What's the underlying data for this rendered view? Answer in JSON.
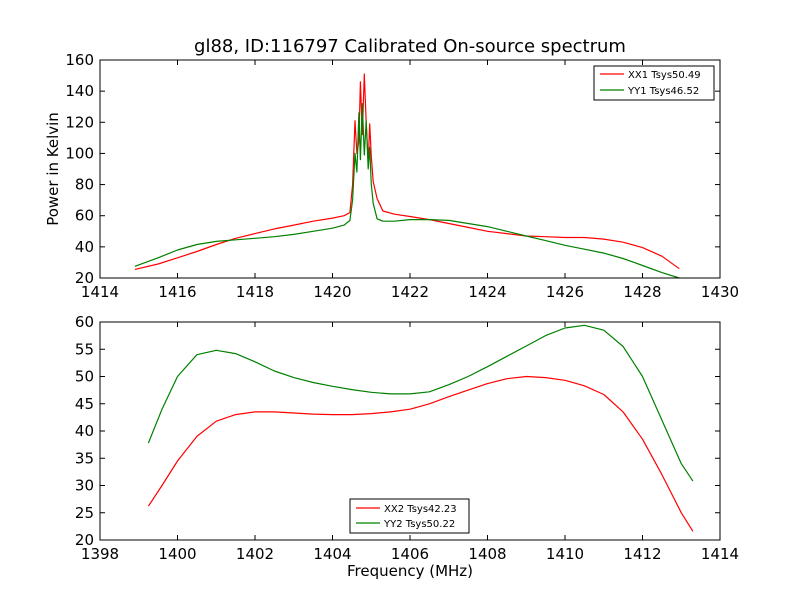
{
  "chart_data": [
    {
      "type": "line",
      "title": "gl88, ID:116797 Calibrated On-source spectrum",
      "xlabel": "",
      "ylabel": "Power in Kelvin",
      "xlim": [
        1414,
        1430
      ],
      "ylim": [
        20,
        160
      ],
      "xticks": [
        1414,
        1416,
        1418,
        1420,
        1422,
        1424,
        1426,
        1428,
        1430
      ],
      "yticks": [
        20,
        40,
        60,
        80,
        100,
        120,
        140,
        160
      ],
      "grid": false,
      "legend_position": "top-right",
      "series": [
        {
          "name": "XX1 Tsys50.49",
          "color": "#ff0000",
          "points": [
            [
              1414.9,
              25.5
            ],
            [
              1415.5,
              29
            ],
            [
              1416,
              33
            ],
            [
              1416.5,
              37
            ],
            [
              1417,
              41.5
            ],
            [
              1417.5,
              45.5
            ],
            [
              1418,
              48.5
            ],
            [
              1418.5,
              51.5
            ],
            [
              1419,
              54
            ],
            [
              1419.5,
              56.5
            ],
            [
              1420,
              58.5
            ],
            [
              1420.3,
              60
            ],
            [
              1420.45,
              62
            ],
            [
              1420.52,
              80
            ],
            [
              1420.58,
              121
            ],
            [
              1420.63,
              100
            ],
            [
              1420.68,
              108
            ],
            [
              1420.72,
              146
            ],
            [
              1420.77,
              112
            ],
            [
              1420.82,
              151
            ],
            [
              1420.87,
              120
            ],
            [
              1420.92,
              94
            ],
            [
              1420.96,
              119
            ],
            [
              1421,
              98
            ],
            [
              1421.05,
              82
            ],
            [
              1421.15,
              71
            ],
            [
              1421.3,
              63
            ],
            [
              1421.6,
              61
            ],
            [
              1422,
              59.5
            ],
            [
              1422.5,
              57.5
            ],
            [
              1423,
              55
            ],
            [
              1423.5,
              52.5
            ],
            [
              1424,
              50
            ],
            [
              1424.5,
              48.5
            ],
            [
              1425,
              47
            ],
            [
              1425.5,
              46.5
            ],
            [
              1426,
              46
            ],
            [
              1426.5,
              46
            ],
            [
              1427,
              45
            ],
            [
              1427.5,
              43
            ],
            [
              1428,
              39.5
            ],
            [
              1428.5,
              34
            ],
            [
              1428.95,
              26
            ]
          ]
        },
        {
          "name": "YY1 Tsys46.52",
          "color": "#008000",
          "points": [
            [
              1414.9,
              27.5
            ],
            [
              1415.5,
              33
            ],
            [
              1416,
              38
            ],
            [
              1416.5,
              41.5
            ],
            [
              1417,
              43.5
            ],
            [
              1417.5,
              44.5
            ],
            [
              1418,
              45.5
            ],
            [
              1418.5,
              46.5
            ],
            [
              1419,
              48
            ],
            [
              1419.5,
              50
            ],
            [
              1420,
              52
            ],
            [
              1420.3,
              54
            ],
            [
              1420.45,
              57
            ],
            [
              1420.52,
              70
            ],
            [
              1420.58,
              100
            ],
            [
              1420.63,
              88
            ],
            [
              1420.68,
              126
            ],
            [
              1420.72,
              96
            ],
            [
              1420.77,
              132
            ],
            [
              1420.82,
              99
            ],
            [
              1420.87,
              121
            ],
            [
              1420.92,
              90
            ],
            [
              1420.96,
              104
            ],
            [
              1421,
              80
            ],
            [
              1421.05,
              68
            ],
            [
              1421.15,
              58
            ],
            [
              1421.3,
              56.5
            ],
            [
              1421.6,
              56.5
            ],
            [
              1422,
              57.5
            ],
            [
              1422.5,
              57.5
            ],
            [
              1423,
              57
            ],
            [
              1423.5,
              55
            ],
            [
              1424,
              53
            ],
            [
              1424.5,
              50
            ],
            [
              1425,
              47
            ],
            [
              1425.5,
              44
            ],
            [
              1426,
              41
            ],
            [
              1426.5,
              38.5
            ],
            [
              1427,
              36
            ],
            [
              1427.5,
              32.5
            ],
            [
              1428,
              28
            ],
            [
              1428.5,
              23.5
            ],
            [
              1428.95,
              20
            ]
          ]
        }
      ]
    },
    {
      "type": "line",
      "title": "",
      "xlabel": "Frequency (MHz)",
      "ylabel": "",
      "xlim": [
        1398,
        1414
      ],
      "ylim": [
        20,
        60
      ],
      "xticks": [
        1398,
        1400,
        1402,
        1404,
        1406,
        1408,
        1410,
        1412,
        1414
      ],
      "yticks": [
        20,
        25,
        30,
        35,
        40,
        45,
        50,
        55,
        60
      ],
      "grid": false,
      "legend_position": "bottom-center",
      "series": [
        {
          "name": "XX2 Tsys42.23",
          "color": "#ff0000",
          "points": [
            [
              1399.25,
              26.2
            ],
            [
              1399.6,
              30
            ],
            [
              1400,
              34.5
            ],
            [
              1400.5,
              39
            ],
            [
              1401,
              41.8
            ],
            [
              1401.5,
              43
            ],
            [
              1402,
              43.5
            ],
            [
              1402.5,
              43.5
            ],
            [
              1403,
              43.3
            ],
            [
              1403.5,
              43.1
            ],
            [
              1404,
              43
            ],
            [
              1404.5,
              43
            ],
            [
              1405,
              43.2
            ],
            [
              1405.5,
              43.5
            ],
            [
              1406,
              44
            ],
            [
              1406.5,
              45
            ],
            [
              1407,
              46.3
            ],
            [
              1407.5,
              47.5
            ],
            [
              1408,
              48.7
            ],
            [
              1408.5,
              49.6
            ],
            [
              1409,
              50
            ],
            [
              1409.5,
              49.8
            ],
            [
              1410,
              49.3
            ],
            [
              1410.5,
              48.3
            ],
            [
              1411,
              46.7
            ],
            [
              1411.5,
              43.5
            ],
            [
              1412,
              38.5
            ],
            [
              1412.5,
              32
            ],
            [
              1413,
              25
            ],
            [
              1413.3,
              21.6
            ]
          ]
        },
        {
          "name": "YY2 Tsys50.22",
          "color": "#008000",
          "points": [
            [
              1399.25,
              37.8
            ],
            [
              1399.6,
              44
            ],
            [
              1400,
              50
            ],
            [
              1400.5,
              54
            ],
            [
              1401,
              54.8
            ],
            [
              1401.5,
              54.2
            ],
            [
              1402,
              52.7
            ],
            [
              1402.5,
              51
            ],
            [
              1403,
              49.8
            ],
            [
              1403.5,
              48.9
            ],
            [
              1404,
              48.2
            ],
            [
              1404.5,
              47.6
            ],
            [
              1405,
              47.1
            ],
            [
              1405.5,
              46.8
            ],
            [
              1406,
              46.8
            ],
            [
              1406.5,
              47.2
            ],
            [
              1407,
              48.5
            ],
            [
              1407.5,
              50
            ],
            [
              1408,
              51.8
            ],
            [
              1408.5,
              53.7
            ],
            [
              1409,
              55.6
            ],
            [
              1409.5,
              57.5
            ],
            [
              1410,
              58.9
            ],
            [
              1410.5,
              59.4
            ],
            [
              1411,
              58.5
            ],
            [
              1411.5,
              55.5
            ],
            [
              1412,
              50
            ],
            [
              1412.5,
              42
            ],
            [
              1413,
              34
            ],
            [
              1413.3,
              30.8
            ]
          ]
        }
      ]
    }
  ]
}
